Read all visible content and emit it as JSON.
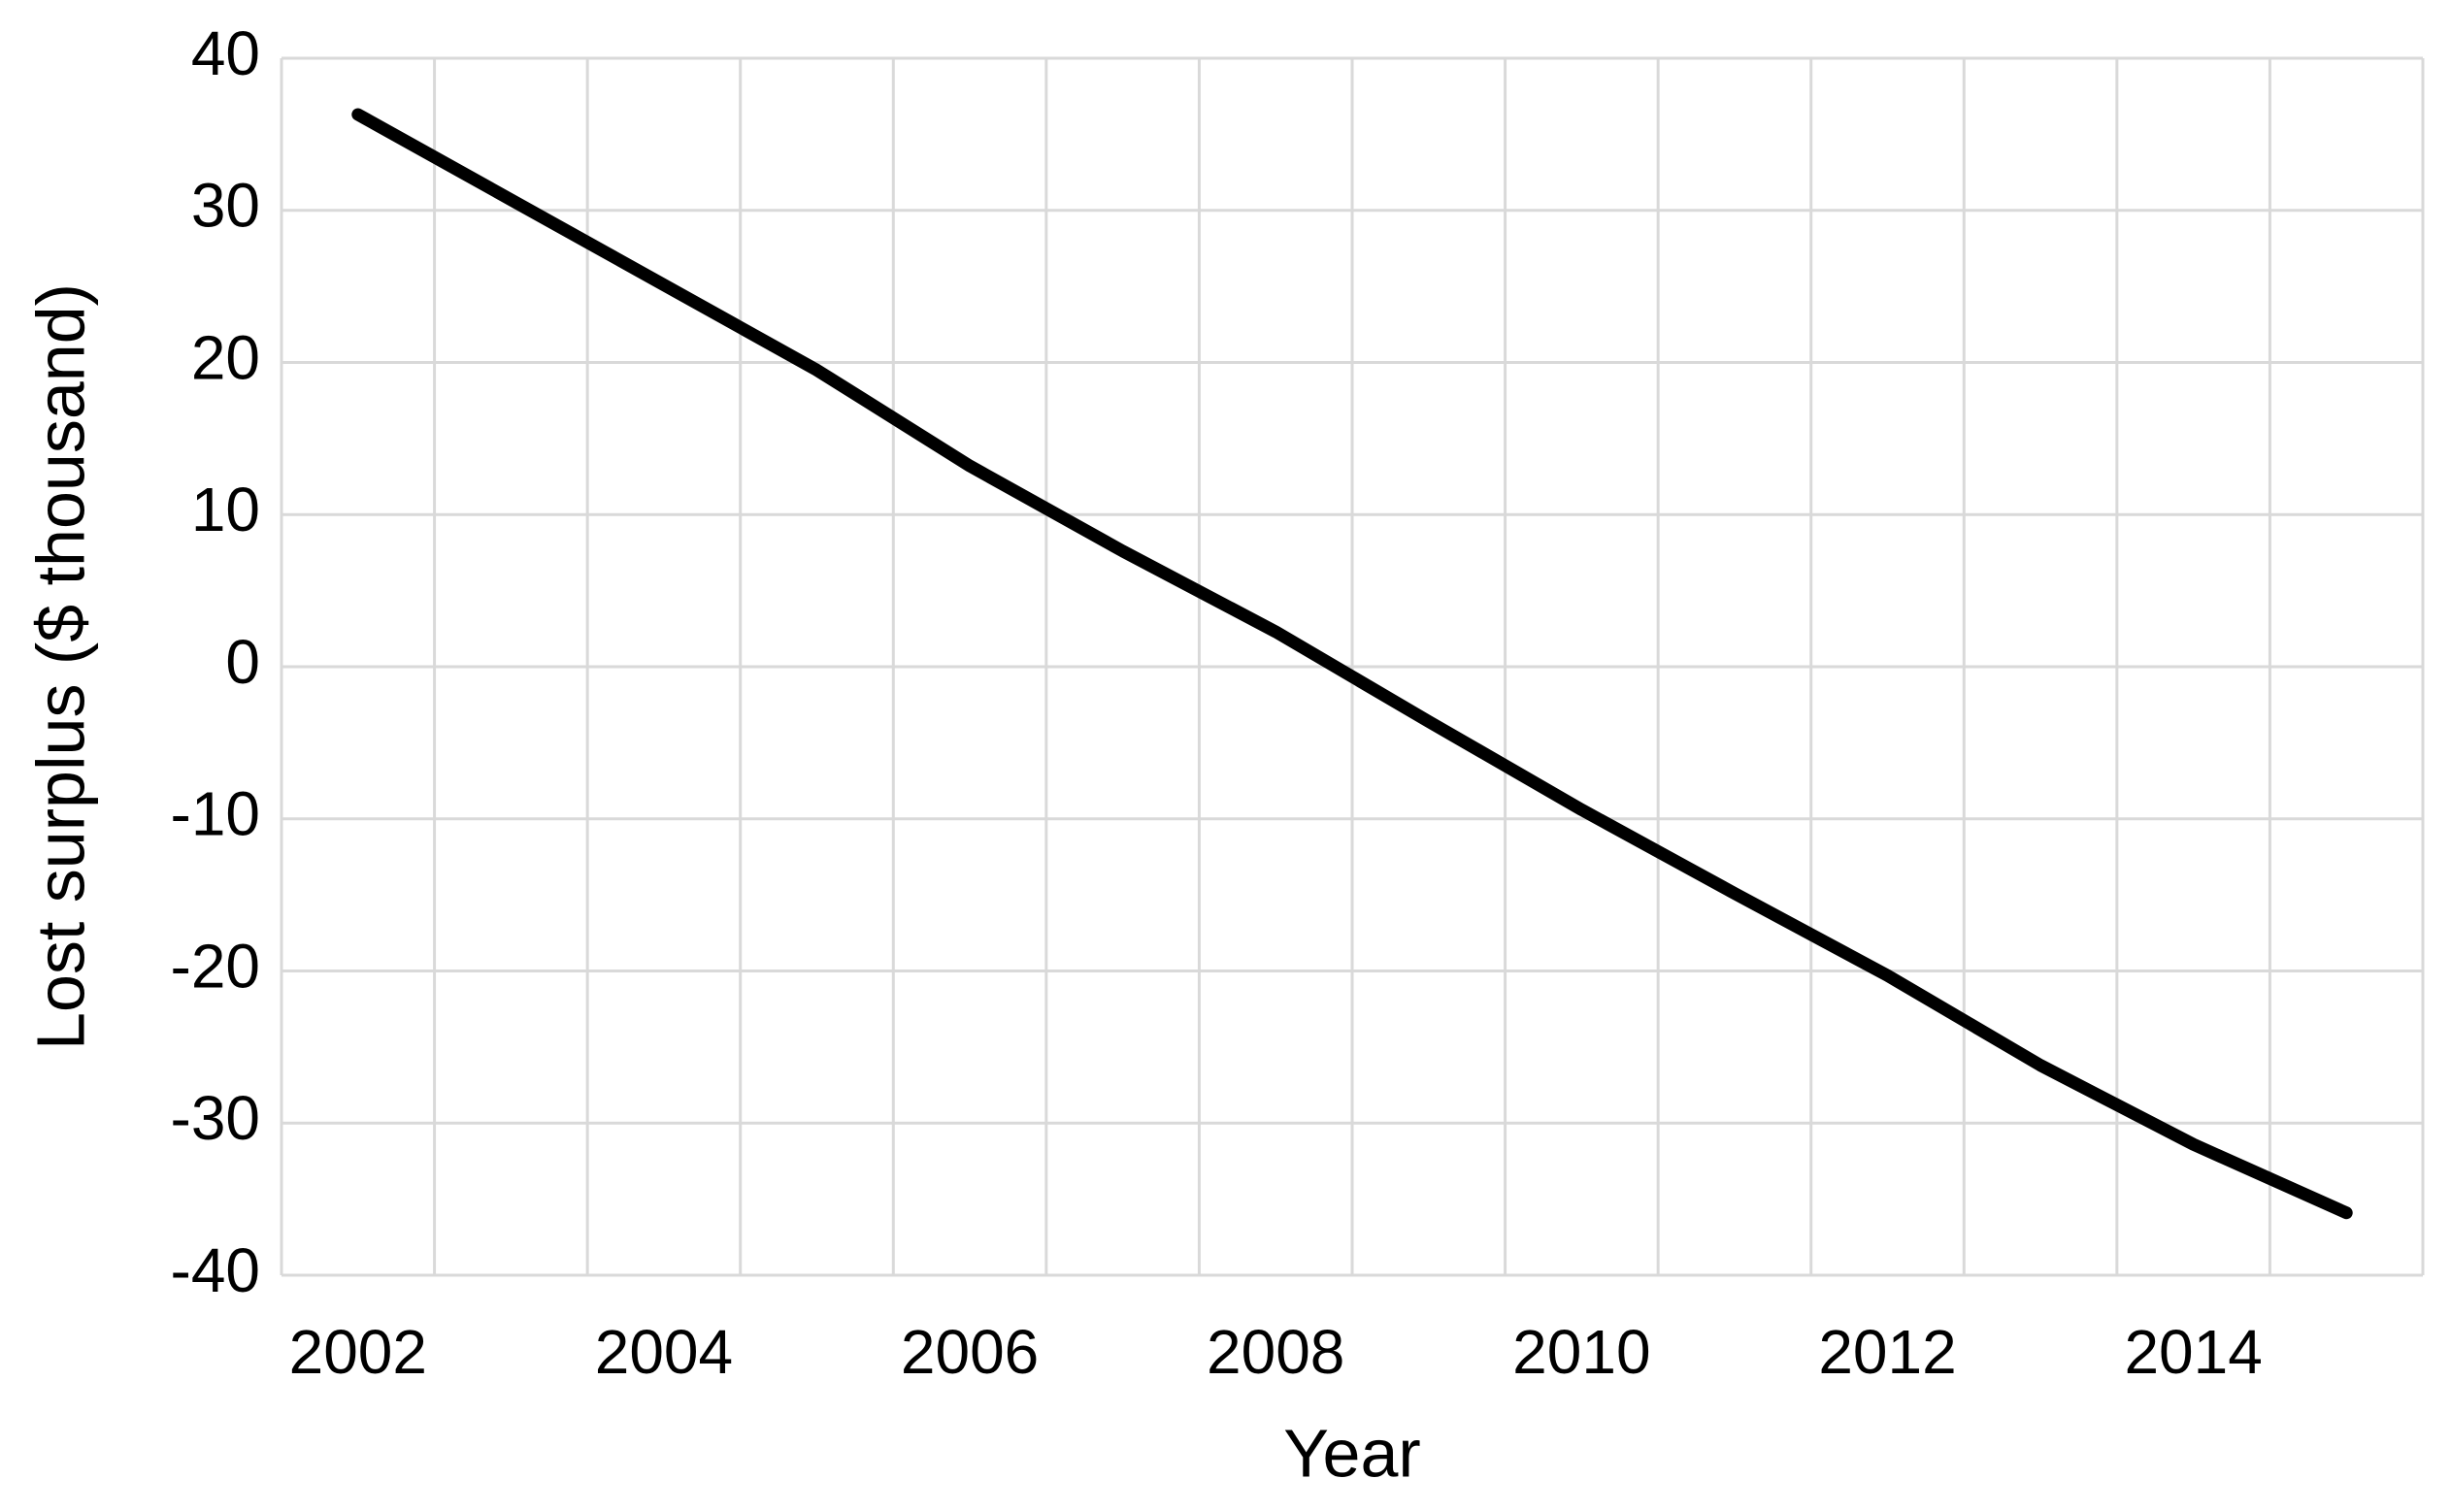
{
  "chart_data": {
    "type": "line",
    "x_label": "Year",
    "y_label": "Lost surplus ($ thousand)",
    "categories": [
      "2002",
      null,
      "2004",
      null,
      "2006",
      null,
      "2008",
      null,
      "2010",
      null,
      "2012",
      null,
      "2014",
      null
    ],
    "series": [
      {
        "name": "Lost surplus",
        "color": "#000000",
        "values": [
          36.3,
          30.7,
          25.1,
          19.5,
          13.2,
          7.6,
          2.3,
          -3.6,
          -9.4,
          -14.9,
          -20.3,
          -26.2,
          -31.4,
          -35.9
        ]
      }
    ],
    "ylim": [
      -40,
      40
    ],
    "yticks": [
      -40,
      -30,
      -20,
      -10,
      0,
      10,
      20,
      30,
      40
    ],
    "grid": true
  }
}
